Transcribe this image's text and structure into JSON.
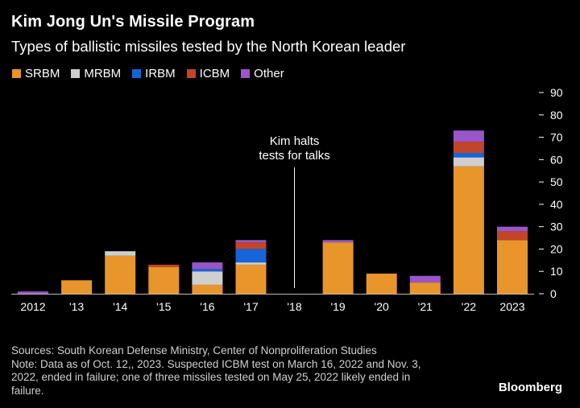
{
  "title": "Kim Jong Un's Missile Program",
  "subtitle": "Types of ballistic missiles tested by the North Korean leader",
  "legend": [
    {
      "label": "SRBM",
      "color": "#e8952c"
    },
    {
      "label": "MRBM",
      "color": "#cfcfcf"
    },
    {
      "label": "IRBM",
      "color": "#1565d8"
    },
    {
      "label": "ICBM",
      "color": "#c2452a"
    },
    {
      "label": "Other",
      "color": "#9a55c9"
    }
  ],
  "annotation": {
    "line1": "Kim halts",
    "line2": "tests for talks"
  },
  "footnote": {
    "line1": "Sources: South Korean Defense Ministry, Center of Nonproliferation Studies",
    "line2": "Note: Data as of Oct. 12,, 2023. Suspected ICBM test on March 16, 2022 and Nov. 3,",
    "line3": "2022, ended in failure; one of three missiles tested on May 25, 2022 likely ended in",
    "line4": "failure."
  },
  "brand": "Bloomberg",
  "chart_data": {
    "type": "bar",
    "stacked": true,
    "categories": [
      "2012",
      "'13",
      "'14",
      "'15",
      "'16",
      "'17",
      "'18",
      "'19",
      "'20",
      "'21",
      "'22",
      "2023"
    ],
    "series": [
      {
        "name": "SRBM",
        "color": "#e8952c",
        "values": [
          0,
          6,
          17,
          12,
          4,
          13,
          0,
          23,
          9,
          5,
          57,
          24
        ]
      },
      {
        "name": "MRBM",
        "color": "#cfcfcf",
        "values": [
          0,
          0,
          2,
          0,
          6,
          1,
          0,
          0,
          0,
          0,
          4,
          0
        ]
      },
      {
        "name": "IRBM",
        "color": "#1565d8",
        "values": [
          0,
          0,
          0,
          0,
          1,
          6,
          0,
          0,
          0,
          0,
          2,
          0
        ]
      },
      {
        "name": "ICBM",
        "color": "#c2452a",
        "values": [
          0,
          0,
          0,
          1,
          0,
          3,
          0,
          0,
          0,
          0,
          5,
          4
        ]
      },
      {
        "name": "Other",
        "color": "#9a55c9",
        "values": [
          1,
          0,
          0,
          0,
          3,
          1,
          0,
          1,
          0,
          3,
          5,
          2
        ]
      }
    ],
    "ylim": [
      0,
      90
    ],
    "yticks": [
      0,
      10,
      20,
      30,
      40,
      50,
      60,
      70,
      80,
      90
    ],
    "yaxis_position": "right",
    "annotation_category": "'18",
    "grid": false,
    "legend_position": "top-left"
  }
}
